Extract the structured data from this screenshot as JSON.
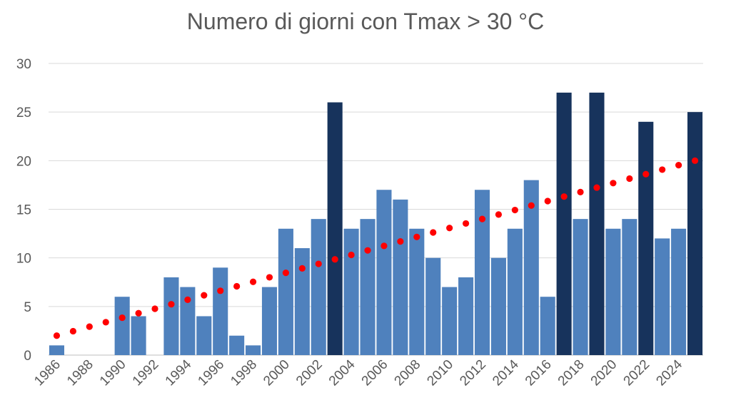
{
  "chart_data": {
    "type": "bar",
    "title": "Numero di giorni con Tmax > 30 °C",
    "xlabel": "",
    "ylabel": "",
    "ylim": [
      0,
      30
    ],
    "yticks": [
      "0",
      "5",
      "10",
      "15",
      "20",
      "25",
      "30"
    ],
    "xticks": [
      "1986",
      "1988",
      "1990",
      "1992",
      "1994",
      "1996",
      "1998",
      "2000",
      "2002",
      "2004",
      "2006",
      "2008",
      "2010",
      "2012",
      "2014",
      "2016",
      "2018",
      "2020",
      "2022",
      "2024"
    ],
    "categories": [
      1986,
      1987,
      1988,
      1989,
      1990,
      1991,
      1992,
      1993,
      1994,
      1995,
      1996,
      1997,
      1998,
      1999,
      2000,
      2001,
      2002,
      2003,
      2004,
      2005,
      2006,
      2007,
      2008,
      2009,
      2010,
      2011,
      2012,
      2013,
      2014,
      2015,
      2016,
      2017,
      2018,
      2019,
      2020,
      2021,
      2022,
      2023,
      2024,
      2025
    ],
    "values": [
      1,
      0,
      0,
      0,
      6,
      4,
      0,
      8,
      7,
      4,
      9,
      2,
      1,
      7,
      13,
      11,
      14,
      26,
      13,
      14,
      17,
      16,
      13,
      10,
      7,
      8,
      17,
      10,
      13,
      18,
      6,
      27,
      14,
      27,
      13,
      14,
      24,
      12,
      13,
      25
    ],
    "highlighted_years": [
      2003,
      2017,
      2019,
      2022,
      2025
    ],
    "trendline": {
      "type": "linear",
      "start": 2.0,
      "end": 20.0,
      "style": "dotted"
    },
    "grid": true,
    "legend": "none",
    "colors": {
      "bar": "#4f81bd",
      "bar_highlight": "#17335c",
      "trend": "#ff0000"
    }
  }
}
